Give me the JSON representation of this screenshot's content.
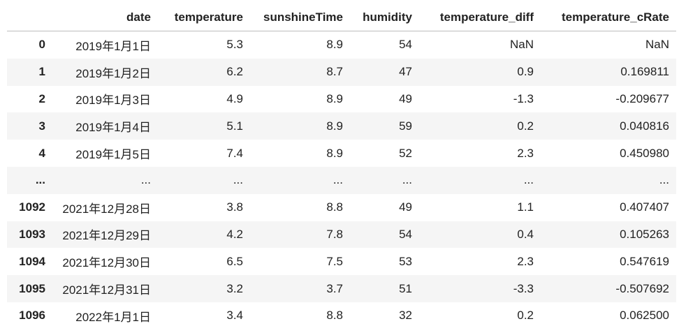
{
  "table": {
    "columns": [
      "date",
      "temperature",
      "sunshineTime",
      "humidity",
      "temperature_diff",
      "temperature_cRate"
    ],
    "rows": [
      [
        "0",
        "2019年1月1日",
        "5.3",
        "8.9",
        "54",
        "NaN",
        "NaN"
      ],
      [
        "1",
        "2019年1月2日",
        "6.2",
        "8.7",
        "47",
        "0.9",
        "0.169811"
      ],
      [
        "2",
        "2019年1月3日",
        "4.9",
        "8.9",
        "49",
        "-1.3",
        "-0.209677"
      ],
      [
        "3",
        "2019年1月4日",
        "5.1",
        "8.9",
        "59",
        "0.2",
        "0.040816"
      ],
      [
        "4",
        "2019年1月5日",
        "7.4",
        "8.9",
        "52",
        "2.3",
        "0.450980"
      ],
      [
        "...",
        "...",
        "...",
        "...",
        "...",
        "...",
        "..."
      ],
      [
        "1092",
        "2021年12月28日",
        "3.8",
        "8.8",
        "49",
        "1.1",
        "0.407407"
      ],
      [
        "1093",
        "2021年12月29日",
        "4.2",
        "7.8",
        "54",
        "0.4",
        "0.105263"
      ],
      [
        "1094",
        "2021年12月30日",
        "6.5",
        "7.5",
        "53",
        "2.3",
        "0.547619"
      ],
      [
        "1095",
        "2021年12月31日",
        "3.2",
        "3.7",
        "51",
        "-3.3",
        "-0.507692"
      ],
      [
        "1096",
        "2022年1月1日",
        "3.4",
        "8.8",
        "32",
        "0.2",
        "0.062500"
      ]
    ]
  }
}
